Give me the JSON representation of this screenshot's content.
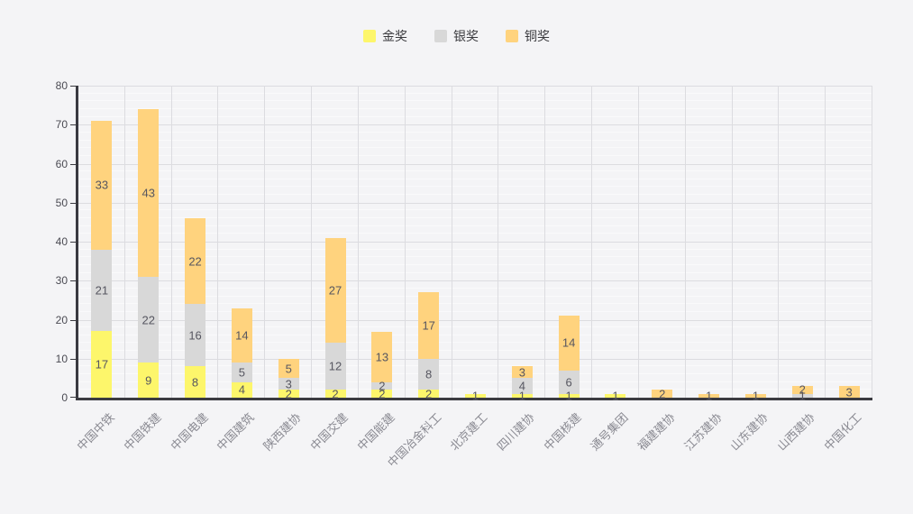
{
  "page": {
    "background": "#f4f4f6"
  },
  "legend": {
    "items": [
      {
        "label": "金奖",
        "color": "#fdf66b"
      },
      {
        "label": "银奖",
        "color": "#d8d8d8"
      },
      {
        "label": "铜奖",
        "color": "#ffd37e"
      }
    ]
  },
  "chart_data": {
    "type": "bar",
    "stacked": true,
    "title": "",
    "xlabel": "",
    "ylabel": "",
    "categories": [
      "中国中铁",
      "中国铁建",
      "中国电建",
      "中国建筑",
      "陕西建协",
      "中国交建",
      "中国能建",
      "中国冶金科工",
      "北京建工",
      "四川建协",
      "中国核建",
      "通号集团",
      "福建建协",
      "江苏建协",
      "山东建协",
      "山西建协",
      "中国化工"
    ],
    "series": [
      {
        "name": "金奖",
        "color": "#fdf66b",
        "values": [
          17,
          9,
          8,
          4,
          2,
          2,
          2,
          2,
          1,
          1,
          1,
          1,
          0,
          0,
          0,
          0,
          0
        ]
      },
      {
        "name": "银奖",
        "color": "#d8d8d8",
        "values": [
          21,
          22,
          16,
          5,
          3,
          12,
          2,
          8,
          0,
          4,
          6,
          0,
          0,
          0,
          0,
          1,
          0
        ]
      },
      {
        "name": "铜奖",
        "color": "#ffd37e",
        "values": [
          33,
          43,
          22,
          14,
          5,
          27,
          13,
          17,
          0,
          3,
          14,
          0,
          2,
          1,
          1,
          2,
          3
        ]
      }
    ],
    "ylim": [
      0,
      80
    ],
    "yticks": [
      0,
      10,
      20,
      30,
      40,
      50,
      60,
      70,
      80
    ],
    "minor_grid_step": 2,
    "grid": true,
    "legend_position": "top-center",
    "value_labels": "inside-segment"
  },
  "colors": {
    "axis": "#3a3a40",
    "grid_major": "#dcdce0",
    "grid_minor": "#ffffff",
    "value_label": "#565660",
    "y_tick_label": "#4a4a52",
    "x_tick_label": "#8a8a92"
  }
}
